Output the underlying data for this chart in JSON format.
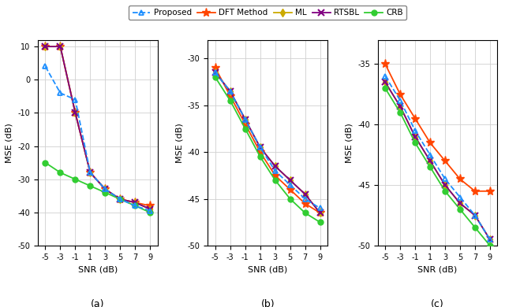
{
  "snr": [
    -5,
    -3,
    -1,
    1,
    3,
    5,
    7,
    9
  ],
  "legend_labels": [
    "Proposed",
    "DFT Method",
    "ML",
    "RTSBL",
    "CRB"
  ],
  "legend_colors": [
    "#1e8fff",
    "#ff4500",
    "#ccaa00",
    "#800080",
    "#32cd32"
  ],
  "legend_markers": [
    "^",
    "*",
    "d",
    "x",
    "o"
  ],
  "panel_a": {
    "ylabel": "MSE (dB)",
    "xlabel": "SNR (dB)",
    "label": "(a)",
    "ylim": [
      -50,
      12
    ],
    "yticks": [
      -50,
      -40,
      -30,
      -20,
      -10,
      0,
      10
    ],
    "proposed": [
      4,
      -4,
      -6,
      -28,
      -33,
      -36,
      -38,
      -39.5
    ],
    "dft": [
      10,
      10,
      -10,
      -28,
      -33,
      -36,
      -37,
      -38
    ],
    "ml": [
      10,
      10,
      -10,
      -28,
      -33,
      -36,
      -37,
      -39
    ],
    "rtsbl": [
      10,
      10,
      -10,
      -28,
      -33,
      -36,
      -37,
      -39
    ],
    "crb": [
      -25,
      -28,
      -30,
      -32,
      -34,
      -36,
      -38,
      -40
    ]
  },
  "panel_b": {
    "ylabel": "MSE (dB)",
    "xlabel": "SNR (dB)",
    "label": "(b)",
    "ylim": [
      -50,
      -28
    ],
    "yticks": [
      -50,
      -45,
      -40,
      -35,
      -30
    ],
    "proposed": [
      -31.5,
      -33.5,
      -36.5,
      -39.5,
      -42.0,
      -43.5,
      -45.0,
      -46.0
    ],
    "dft": [
      -31.0,
      -34.0,
      -37.0,
      -40.0,
      -42.5,
      -44.0,
      -45.5,
      -46.5
    ],
    "ml": [
      -31.5,
      -33.5,
      -36.5,
      -39.5,
      -41.5,
      -43.0,
      -44.5,
      -46.5
    ],
    "rtsbl": [
      -31.5,
      -33.5,
      -36.5,
      -39.5,
      -41.5,
      -43.0,
      -44.5,
      -46.5
    ],
    "crb": [
      -32.0,
      -34.5,
      -37.5,
      -40.5,
      -43.0,
      -45.0,
      -46.5,
      -47.5
    ]
  },
  "panel_c": {
    "ylabel": "MSE (dB)",
    "xlabel": "SNR (dB)",
    "label": "(c)",
    "ylim": [
      -50,
      -33
    ],
    "yticks": [
      -50,
      -45,
      -40,
      -35
    ],
    "proposed": [
      -36.0,
      -38.0,
      -40.5,
      -42.5,
      -44.5,
      -46.0,
      -47.5,
      -49.5
    ],
    "dft": [
      -35.0,
      -37.5,
      -39.5,
      -41.5,
      -43.0,
      -44.5,
      -45.5,
      -45.5
    ],
    "ml": [
      -36.5,
      -38.5,
      -41.0,
      -43.0,
      -45.0,
      -46.5,
      -47.5,
      -49.5
    ],
    "rtsbl": [
      -36.5,
      -38.5,
      -41.0,
      -43.0,
      -45.0,
      -46.5,
      -47.5,
      -49.5
    ],
    "crb": [
      -37.0,
      -39.0,
      -41.5,
      -43.5,
      -45.5,
      -47.0,
      -48.5,
      -50.0
    ]
  },
  "label_fontsize": 8,
  "tick_fontsize": 7,
  "legend_fontsize": 7.5,
  "line_width": 1.3,
  "grid_color": "#d0d0d0",
  "xticks": [
    -5,
    -3,
    -1,
    1,
    3,
    5,
    7,
    9
  ]
}
